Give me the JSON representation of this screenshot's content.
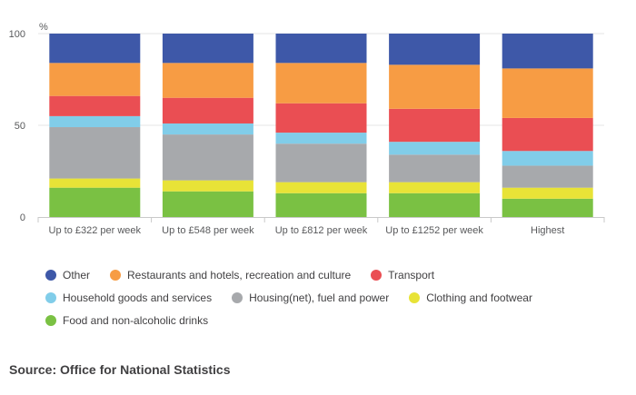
{
  "chart_data": {
    "type": "bar",
    "stacked": true,
    "unit_label": "%",
    "ylim": [
      0,
      100
    ],
    "yticks": [
      0,
      50,
      100
    ],
    "grid": true,
    "legend_position": "bottom",
    "categories": [
      "Up to £322 per week",
      "Up to £548 per week",
      "Up to £812 per week",
      "Up to £1252 per week",
      "Highest"
    ],
    "series": [
      {
        "name": "Food and non-alcoholic drinks",
        "color": "#7ac143",
        "values": [
          16,
          14,
          13,
          13,
          10
        ]
      },
      {
        "name": "Clothing and footwear",
        "color": "#e8e337",
        "values": [
          5,
          6,
          6,
          6,
          6
        ]
      },
      {
        "name": "Housing(net), fuel and power",
        "color": "#a7a9ac",
        "values": [
          28,
          25,
          21,
          15,
          12
        ]
      },
      {
        "name": "Household goods and services",
        "color": "#81cde9",
        "values": [
          6,
          6,
          6,
          7,
          8
        ]
      },
      {
        "name": "Transport",
        "color": "#ea4e53",
        "values": [
          11,
          14,
          16,
          18,
          18
        ]
      },
      {
        "name": "Restaurants and hotels, recreation and culture",
        "color": "#f79c44",
        "values": [
          18,
          19,
          22,
          24,
          27
        ]
      },
      {
        "name": "Other",
        "color": "#3e58a8",
        "values": [
          16,
          16,
          16,
          17,
          19
        ]
      }
    ]
  },
  "legend_order": [
    [
      "Other",
      "Restaurants and hotels, recreation and culture",
      "Transport"
    ],
    [
      "Household goods and services",
      "Housing(net), fuel and power",
      "Clothing and footwear"
    ],
    [
      "Food and non-alcoholic drinks"
    ]
  ],
  "source": "Source: Office for National Statistics"
}
